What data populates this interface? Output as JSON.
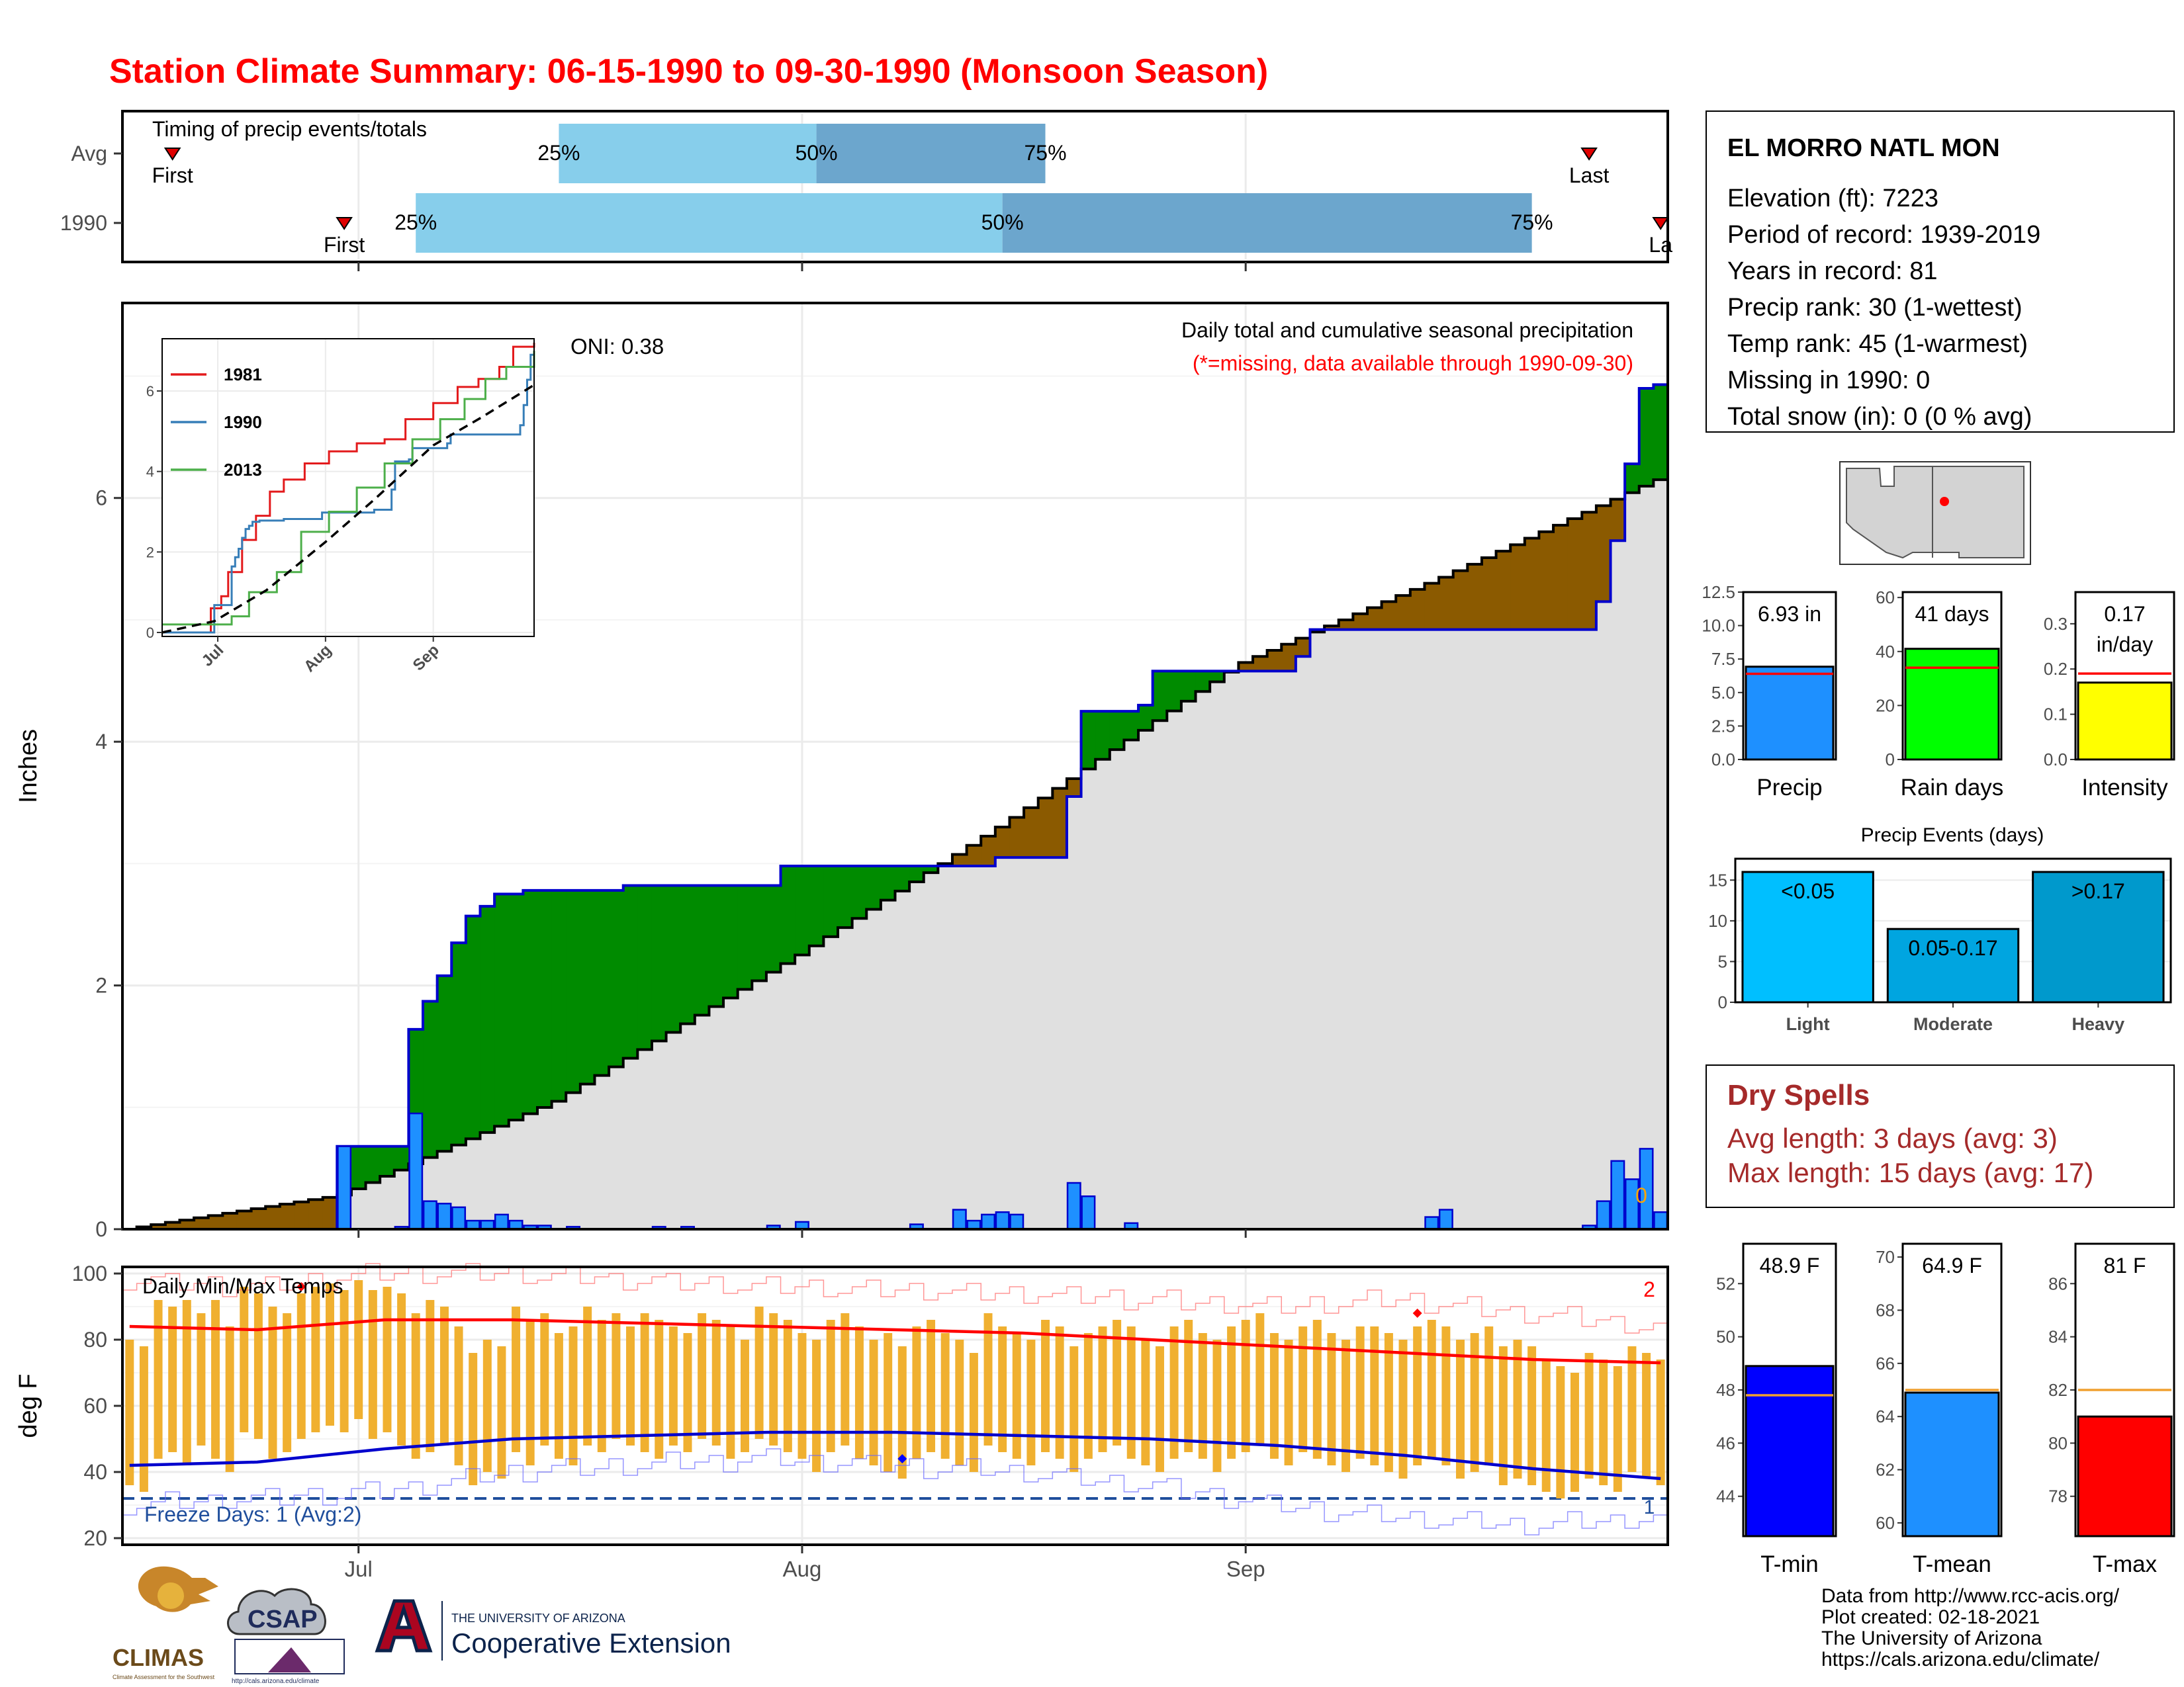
{
  "title": "Station Climate Summary: 06-15-1990 to 09-30-1990 (Monsoon Season)",
  "colors": {
    "title": "#ff0000",
    "q_light": "#87ceeb",
    "q_dark": "#6ca6cd",
    "wet": "#008b00",
    "dry": "#8b5a00",
    "avg_area": "#e0e0e0",
    "daily_bar": "#1e90ff",
    "temp_bar": "#f0b030",
    "tmax_line": "#ff0000",
    "tmin_line": "#0000cd",
    "dry_spell_text": "#a52a2a"
  },
  "timing": {
    "title": "Timing of precip events/totals",
    "rows": [
      {
        "label": "Avg",
        "first_label": "First",
        "last_label": "Last",
        "first": "1990-06-18",
        "last": "1990-09-25",
        "q25": "1990-07-15",
        "q50": "1990-08-02",
        "q75": "1990-08-18",
        "q25_label": "25%",
        "q50_label": "50%",
        "q75_label": "75%"
      },
      {
        "label": "1990",
        "first_label": "First",
        "last_label": "La",
        "first": "1990-06-30",
        "last": "1990-09-30",
        "q25": "1990-07-05",
        "q50": "1990-08-15",
        "q75": "1990-09-21",
        "q25_label": "25%",
        "q50_label": "50%",
        "q75_label": "75%"
      }
    ]
  },
  "chart_data": [
    {
      "id": "precipitation",
      "type": "area",
      "ylabel": "Inches",
      "ylim": [
        0,
        7.6
      ],
      "yticks": [
        0,
        2,
        4,
        6
      ],
      "xticks": [
        {
          "date": "1990-07-01",
          "label": "Jul"
        },
        {
          "date": "1990-08-01",
          "label": "Aug"
        },
        {
          "date": "1990-09-01",
          "label": "Sep"
        }
      ],
      "annotation_title": "Daily total and cumulative seasonal precipitation",
      "annotation_missing": "(*=missing, data available through 1990-09-30)",
      "oni": "ONI: 0.38",
      "missing_count": "0",
      "avg_cumulative": {
        "x": [
          "1990-06-15",
          "1990-06-30",
          "1990-07-15",
          "1990-08-01",
          "1990-08-15",
          "1990-09-01",
          "1990-09-15",
          "1990-09-30"
        ],
        "y": [
          0,
          0.28,
          1.05,
          2.25,
          3.3,
          4.65,
          5.35,
          6.15
        ]
      },
      "obs_cumulative": {
        "x": [
          "1990-06-15",
          "1990-06-29",
          "1990-06-30",
          "1990-07-04",
          "1990-07-05",
          "1990-07-06",
          "1990-07-07",
          "1990-07-08",
          "1990-07-09",
          "1990-07-10",
          "1990-07-11",
          "1990-07-13",
          "1990-07-20",
          "1990-07-31",
          "1990-08-15",
          "1990-08-20",
          "1990-08-21",
          "1990-08-25",
          "1990-08-26",
          "1990-09-05",
          "1990-09-06",
          "1990-09-26",
          "1990-09-27",
          "1990-09-28",
          "1990-09-29",
          "1990-09-30"
        ],
        "y": [
          0,
          0,
          0.68,
          0.68,
          1.64,
          1.87,
          2.08,
          2.35,
          2.57,
          2.65,
          2.75,
          2.78,
          2.82,
          2.98,
          3.05,
          3.55,
          4.25,
          4.3,
          4.58,
          4.7,
          4.92,
          5.15,
          5.65,
          6.28,
          6.9,
          6.93
        ]
      },
      "daily": {
        "x": [
          "1990-06-30",
          "1990-07-04",
          "1990-07-05",
          "1990-07-06",
          "1990-07-07",
          "1990-07-08",
          "1990-07-09",
          "1990-07-10",
          "1990-07-11",
          "1990-07-12",
          "1990-07-13",
          "1990-07-14",
          "1990-07-16",
          "1990-07-22",
          "1990-07-24",
          "1990-07-30",
          "1990-08-01",
          "1990-08-09",
          "1990-08-12",
          "1990-08-13",
          "1990-08-14",
          "1990-08-15",
          "1990-08-16",
          "1990-08-20",
          "1990-08-21",
          "1990-08-24",
          "1990-09-14",
          "1990-09-15",
          "1990-09-25",
          "1990-09-26",
          "1990-09-27",
          "1990-09-28",
          "1990-09-29",
          "1990-09-30"
        ],
        "y": [
          0.68,
          0.02,
          0.95,
          0.23,
          0.21,
          0.18,
          0.07,
          0.07,
          0.12,
          0.07,
          0.03,
          0.03,
          0.02,
          0.02,
          0.02,
          0.03,
          0.06,
          0.04,
          0.16,
          0.07,
          0.12,
          0.14,
          0.12,
          0.38,
          0.27,
          0.05,
          0.1,
          0.16,
          0.03,
          0.23,
          0.56,
          0.41,
          0.66,
          0.14
        ]
      },
      "inset": {
        "ylim": [
          0,
          7.2
        ],
        "yticks": [
          0,
          2,
          4,
          6
        ],
        "xticks": [
          {
            "date": "1990-07-01",
            "label": "Jul"
          },
          {
            "date": "1990-08-01",
            "label": "Aug"
          },
          {
            "date": "1990-09-01",
            "label": "Sep"
          }
        ],
        "legend_position": "top-left",
        "series": [
          {
            "name": "1981",
            "color": "#e31a1c",
            "x": [
              "1990-06-15",
              "1990-06-27",
              "1990-06-29",
              "1990-07-02",
              "1990-07-04",
              "1990-07-08",
              "1990-07-12",
              "1990-07-16",
              "1990-07-20",
              "1990-07-26",
              "1990-08-02",
              "1990-08-10",
              "1990-08-18",
              "1990-08-24",
              "1990-09-01",
              "1990-09-08",
              "1990-09-14",
              "1990-09-20",
              "1990-09-24",
              "1990-09-30"
            ],
            "y": [
              0,
              0,
              0.6,
              0.9,
              1.5,
              2.3,
              2.9,
              3.5,
              3.8,
              4.2,
              4.5,
              4.7,
              4.8,
              5.3,
              5.7,
              6.1,
              6.3,
              6.6,
              7.1,
              7.2
            ]
          },
          {
            "name": "1990",
            "color": "#377eb8",
            "x": [
              "1990-06-15",
              "1990-06-29",
              "1990-06-30",
              "1990-07-04",
              "1990-07-05",
              "1990-07-06",
              "1990-07-07",
              "1990-07-08",
              "1990-07-09",
              "1990-07-10",
              "1990-07-11",
              "1990-07-13",
              "1990-07-20",
              "1990-07-31",
              "1990-08-15",
              "1990-08-20",
              "1990-08-21",
              "1990-08-25",
              "1990-08-26",
              "1990-09-05",
              "1990-09-06",
              "1990-09-26",
              "1990-09-27",
              "1990-09-28",
              "1990-09-29",
              "1990-09-30"
            ],
            "y": [
              0,
              0,
              0.68,
              0.68,
              1.64,
              1.87,
              2.08,
              2.35,
              2.57,
              2.65,
              2.75,
              2.78,
              2.82,
              2.98,
              3.05,
              3.55,
              4.25,
              4.3,
              4.58,
              4.7,
              4.92,
              5.15,
              5.65,
              6.28,
              6.9,
              6.93
            ]
          },
          {
            "name": "2013",
            "color": "#4daf4a",
            "x": [
              "1990-06-15",
              "1990-07-05",
              "1990-07-10",
              "1990-07-18",
              "1990-07-25",
              "1990-08-02",
              "1990-08-10",
              "1990-08-18",
              "1990-08-26",
              "1990-09-03",
              "1990-09-10",
              "1990-09-16",
              "1990-09-22",
              "1990-09-30"
            ],
            "y": [
              0.2,
              0.4,
              1.0,
              1.5,
              2.5,
              3.0,
              3.6,
              4.2,
              4.8,
              5.3,
              5.8,
              6.3,
              6.6,
              7.0
            ]
          }
        ],
        "avg": {
          "x": [
            "1990-06-15",
            "1990-06-30",
            "1990-07-15",
            "1990-08-01",
            "1990-08-15",
            "1990-09-01",
            "1990-09-15",
            "1990-09-30"
          ],
          "y": [
            0,
            0.28,
            1.05,
            2.25,
            3.3,
            4.65,
            5.35,
            6.15
          ]
        }
      }
    },
    {
      "id": "temperature",
      "type": "bar",
      "title": "Daily Min/Max Temps",
      "ylabel": "deg F",
      "ylim": [
        18,
        102
      ],
      "yticks": [
        20,
        40,
        60,
        80,
        100
      ],
      "freeze_line": 32,
      "freeze_label": "Freeze Days: 1 (Avg:2)",
      "top_count": "2",
      "bottom_count": "1",
      "xticks": [
        {
          "date": "1990-07-01",
          "label": "Jul"
        },
        {
          "date": "1990-08-01",
          "label": "Aug"
        },
        {
          "date": "1990-09-01",
          "label": "Sep"
        }
      ],
      "daily_max": [
        80,
        78,
        92,
        90,
        92,
        88,
        92,
        84,
        96,
        94,
        90,
        88,
        94,
        96,
        97,
        95,
        98,
        95,
        96,
        94,
        88,
        92,
        90,
        84,
        76,
        80,
        78,
        90,
        86,
        88,
        82,
        84,
        90,
        86,
        88,
        84,
        88,
        86,
        84,
        82,
        88,
        86,
        84,
        80,
        90,
        88,
        86,
        82,
        80,
        86,
        88,
        84,
        80,
        82,
        78,
        84,
        86,
        82,
        80,
        76,
        88,
        84,
        82,
        80,
        86,
        84,
        78,
        82,
        84,
        86,
        84,
        80,
        78,
        84,
        86,
        82,
        80,
        84,
        86,
        88,
        82,
        80,
        84,
        86,
        82,
        80,
        84,
        84,
        82,
        80,
        84,
        86,
        84,
        80,
        82,
        84,
        78,
        80,
        78,
        74,
        72,
        70,
        76,
        74,
        72,
        78,
        76,
        74
      ],
      "daily_min": [
        36,
        34,
        44,
        46,
        42,
        48,
        44,
        40,
        52,
        50,
        44,
        46,
        50,
        52,
        54,
        52,
        56,
        50,
        52,
        48,
        44,
        46,
        48,
        42,
        36,
        40,
        38,
        46,
        42,
        48,
        44,
        42,
        48,
        46,
        50,
        48,
        46,
        44,
        48,
        46,
        50,
        48,
        44,
        46,
        50,
        48,
        46,
        44,
        40,
        46,
        48,
        44,
        42,
        40,
        38,
        44,
        46,
        44,
        42,
        40,
        48,
        46,
        44,
        42,
        46,
        44,
        40,
        44,
        46,
        48,
        44,
        42,
        40,
        44,
        46,
        44,
        40,
        44,
        46,
        48,
        44,
        42,
        46,
        44,
        42,
        40,
        44,
        42,
        40,
        38,
        42,
        44,
        42,
        38,
        40,
        42,
        36,
        38,
        36,
        34,
        32,
        34,
        38,
        36,
        34,
        40,
        38,
        36
      ],
      "avg_max": [
        84,
        83,
        86,
        86,
        85,
        84,
        83,
        82,
        80,
        78,
        76,
        74,
        73
      ],
      "avg_min": [
        42,
        43,
        47,
        50,
        51,
        52,
        52,
        51,
        50,
        48,
        45,
        41,
        38
      ],
      "record_max": [
        98,
        96,
        100,
        100,
        98,
        96,
        95,
        94,
        92,
        90,
        92,
        88,
        84
      ],
      "record_min": [
        30,
        32,
        34,
        40,
        42,
        44,
        42,
        40,
        36,
        30,
        26,
        24,
        26
      ],
      "record_points": [
        {
          "date": "1990-06-27",
          "value": 96,
          "kind": "max"
        },
        {
          "date": "1990-09-13",
          "value": 88,
          "kind": "max"
        },
        {
          "date": "1990-08-08",
          "value": 44,
          "kind": "min"
        }
      ]
    },
    {
      "id": "summary-bars",
      "type": "bar",
      "panels": [
        {
          "name": "precip",
          "label": "Precip",
          "value": 6.93,
          "avg": 6.4,
          "value_label": "6.93 in",
          "ylim": [
            0,
            12.5
          ],
          "yticks": [
            "0.0",
            "2.5",
            "5.0",
            "7.5",
            "10.0",
            "12.5"
          ],
          "color": "#1e90ff"
        },
        {
          "name": "rain-days",
          "label": "Rain days",
          "value": 41,
          "avg": 34,
          "value_label": "41 days",
          "ylim": [
            0,
            62
          ],
          "yticks": [
            "0",
            "20",
            "40",
            "60"
          ],
          "color": "#00ff00"
        },
        {
          "name": "intensity",
          "label": "Intensity",
          "value": 0.17,
          "avg": 0.19,
          "value_label": "0.17",
          "value_label_2": "in/day",
          "ylim": [
            0,
            0.37
          ],
          "yticks": [
            "0.0",
            "0.1",
            "0.2",
            "0.3"
          ],
          "color": "#ffff00"
        }
      ]
    },
    {
      "id": "precip-events",
      "type": "bar",
      "title": "Precip Events (days)",
      "ylim": [
        0,
        16
      ],
      "yticks": [
        "0",
        "5",
        "10",
        "15"
      ],
      "categories": [
        "Light",
        "Moderate",
        "Heavy"
      ],
      "values": [
        16,
        9,
        16
      ],
      "bar_labels": [
        "<0.05",
        "0.05-0.17",
        ">0.17"
      ],
      "colors": [
        "#00bfff",
        "#00a5e0",
        "#0099cc"
      ]
    },
    {
      "id": "temp-summary",
      "type": "bar",
      "panels": [
        {
          "name": "tmin",
          "label": "T-min",
          "value": 48.9,
          "avg": 47.8,
          "value_label": "48.9 F",
          "ylim": [
            42.5,
            53.5
          ],
          "yticks": [
            "44",
            "46",
            "48",
            "50",
            "52"
          ],
          "color": "#0000ff"
        },
        {
          "name": "tmean",
          "label": "T-mean",
          "value": 64.9,
          "avg": 65.0,
          "value_label": "64.9 F",
          "ylim": [
            59.5,
            70.5
          ],
          "yticks": [
            "60",
            "62",
            "64",
            "66",
            "68",
            "70"
          ],
          "color": "#1e90ff"
        },
        {
          "name": "tmax",
          "label": "T-max",
          "value": 81,
          "avg": 82,
          "value_label": "81 F",
          "ylim": [
            76.5,
            87.5
          ],
          "yticks": [
            "78",
            "80",
            "82",
            "84",
            "86"
          ],
          "color": "#ff0000"
        }
      ]
    }
  ],
  "station": {
    "name": "EL MORRO NATL MON",
    "lines": [
      "Elevation (ft): 7223",
      "Period of record: 1939-2019",
      "Years in record: 81",
      "Precip rank: 30 (1-wettest)",
      "Temp rank: 45 (1-warmest)",
      "Missing in 1990: 0",
      "Total snow (in): 0 (0 % avg)"
    ]
  },
  "dry_spells": {
    "title": "Dry Spells",
    "avg": "Avg length: 3 days (avg: 3)",
    "max": "Max length: 15 days (avg: 17)"
  },
  "footer": {
    "lines": [
      "Data from http://www.rcc-acis.org/",
      "Plot created: 02-18-2021",
      "The University of Arizona",
      "https://cals.arizona.edu/climate/"
    ]
  },
  "logos": {
    "climas": "CLIMAS",
    "climas_sub": "Climate Assessment for the Southwest",
    "csap": "CSAP",
    "csap_url": "http://cals.arizona.edu/climate",
    "ua_small": "THE UNIVERSITY OF ARIZONA",
    "ua_big": "Cooperative Extension"
  }
}
